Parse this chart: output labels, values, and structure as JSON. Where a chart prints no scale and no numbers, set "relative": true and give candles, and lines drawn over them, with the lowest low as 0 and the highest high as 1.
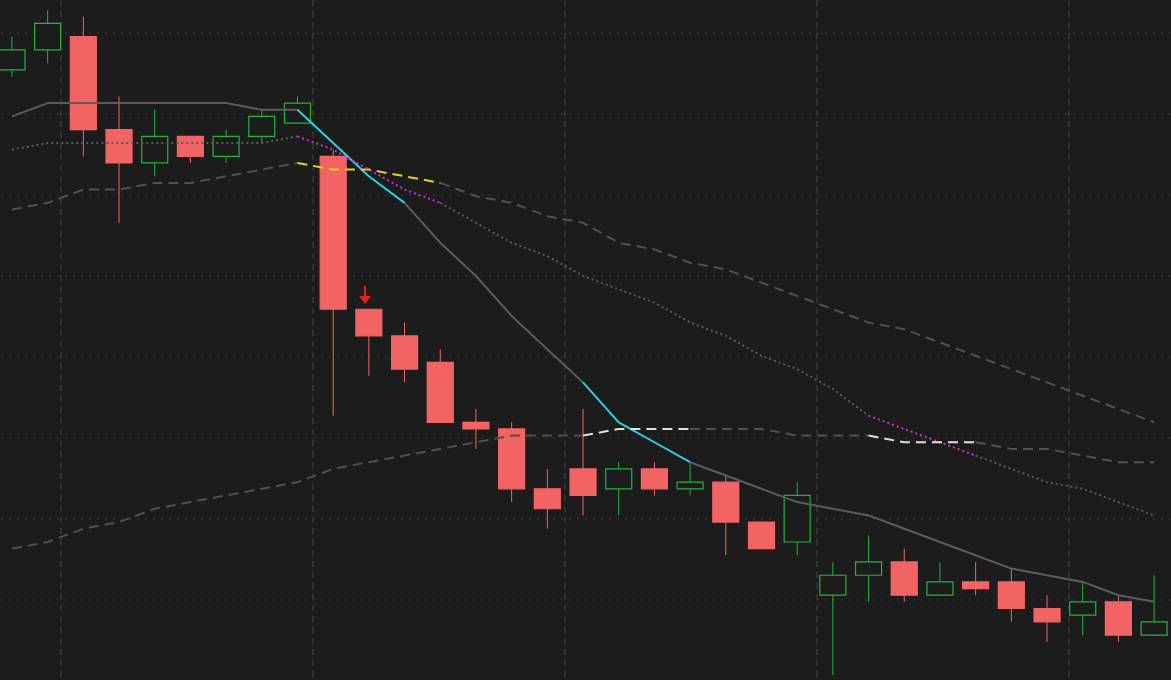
{
  "chart_data": {
    "type": "candlestick",
    "relative": true,
    "categories": [
      null,
      null,
      null,
      null,
      null,
      null,
      null,
      null,
      null,
      null,
      null,
      null,
      null,
      null,
      null,
      null,
      null,
      null,
      null,
      null,
      null,
      null,
      null,
      null,
      null,
      null,
      null,
      null,
      null,
      null,
      null,
      null,
      null
    ],
    "ohlc": [
      [
        0.91,
        0.96,
        0.9,
        0.94
      ],
      [
        0.94,
        1.0,
        0.92,
        0.98
      ],
      [
        0.96,
        0.99,
        0.78,
        0.82
      ],
      [
        0.82,
        0.87,
        0.68,
        0.77
      ],
      [
        0.77,
        0.85,
        0.75,
        0.81
      ],
      [
        0.81,
        0.81,
        0.77,
        0.78
      ],
      [
        0.78,
        0.82,
        0.77,
        0.81
      ],
      [
        0.81,
        0.85,
        0.8,
        0.84
      ],
      [
        0.83,
        0.87,
        0.83,
        0.86
      ],
      [
        0.78,
        0.79,
        0.39,
        0.55
      ],
      [
        0.55,
        0.55,
        0.45,
        0.51
      ],
      [
        0.51,
        0.53,
        0.44,
        0.46
      ],
      [
        0.47,
        0.49,
        0.38,
        0.38
      ],
      [
        0.38,
        0.4,
        0.34,
        0.37
      ],
      [
        0.37,
        0.38,
        0.26,
        0.28
      ],
      [
        0.28,
        0.31,
        0.22,
        0.25
      ],
      [
        0.31,
        0.4,
        0.24,
        0.27
      ],
      [
        0.28,
        0.32,
        0.24,
        0.31
      ],
      [
        0.31,
        0.32,
        0.27,
        0.28
      ],
      [
        0.28,
        0.32,
        0.27,
        0.29
      ],
      [
        0.29,
        0.3,
        0.18,
        0.23
      ],
      [
        0.23,
        0.23,
        0.19,
        0.19
      ],
      [
        0.2,
        0.29,
        0.18,
        0.27
      ],
      [
        0.12,
        0.17,
        0.0,
        0.15
      ],
      [
        0.15,
        0.21,
        0.11,
        0.17
      ],
      [
        0.17,
        0.19,
        0.11,
        0.12
      ],
      [
        0.12,
        0.17,
        0.12,
        0.14
      ],
      [
        0.14,
        0.17,
        0.12,
        0.13
      ],
      [
        0.14,
        0.16,
        0.08,
        0.1
      ],
      [
        0.1,
        0.12,
        0.05,
        0.08
      ],
      [
        0.09,
        0.14,
        0.06,
        0.11
      ],
      [
        0.11,
        0.12,
        0.05,
        0.06
      ],
      [
        0.06,
        0.15,
        0.06,
        0.08
      ]
    ],
    "colors": [
      "#22b33c",
      "#22b33c",
      "#f26464",
      "#f26464",
      "#22b33c",
      "#f26464",
      "#22b33c",
      "#22b33c",
      "#22b33c",
      "#f26464",
      "#f26464",
      "#f26464",
      "#f26464",
      "#f26464",
      "#f26464",
      "#f26464",
      "#f26464",
      "#22b33c",
      "#f26464",
      "#22b33c",
      "#f26464",
      "#f26464",
      "#22b33c",
      "#22b33c",
      "#22b33c",
      "#f26464",
      "#22b33c",
      "#f26464",
      "#f26464",
      "#f26464",
      "#22b33c",
      "#f26464",
      "#22b33c"
    ],
    "series": [
      {
        "type": "line",
        "color": "#5c5c5c",
        "line_style": "solid",
        "values": [
          0.84,
          0.86,
          0.86,
          0.86,
          0.86,
          0.86,
          0.86,
          0.85,
          0.85,
          null,
          null,
          0.71,
          0.65,
          0.6,
          0.54,
          0.49,
          0.44,
          null,
          null,
          0.32,
          0.3,
          0.28,
          0.26,
          0.25,
          0.24,
          0.22,
          0.2,
          0.18,
          0.16,
          0.15,
          0.14,
          0.12,
          0.11
        ]
      },
      {
        "type": "line",
        "color": "#5a5a5a",
        "line_style": "dotted",
        "values": [
          0.79,
          0.8,
          0.8,
          0.8,
          0.8,
          0.8,
          0.8,
          0.8,
          0.81,
          null,
          null,
          null,
          0.71,
          0.68,
          0.65,
          0.63,
          0.6,
          0.58,
          0.56,
          0.53,
          0.51,
          0.48,
          0.46,
          0.43,
          0.39,
          null,
          null,
          0.33,
          0.31,
          0.29,
          0.28,
          0.26,
          0.24
        ]
      },
      {
        "type": "line",
        "color": "#505050",
        "line_style": "dashed",
        "values": [
          0.7,
          0.71,
          0.73,
          0.73,
          0.74,
          0.74,
          0.75,
          0.76,
          0.77,
          null,
          null,
          null,
          0.74,
          0.72,
          0.71,
          0.69,
          0.68,
          0.65,
          0.64,
          0.62,
          0.61,
          0.59,
          0.57,
          0.55,
          0.53,
          0.52,
          0.5,
          0.48,
          0.46,
          0.44,
          0.42,
          0.4,
          0.38
        ]
      },
      {
        "type": "line",
        "color": "#505050",
        "line_style": "dashed",
        "values": [
          0.19,
          0.2,
          0.22,
          0.23,
          0.25,
          0.26,
          0.27,
          0.28,
          0.29,
          0.31,
          0.32,
          0.33,
          0.34,
          0.35,
          0.36,
          0.36,
          0.36,
          null,
          null,
          0.37,
          0.37,
          0.37,
          0.36,
          0.36,
          0.36,
          null,
          null,
          0.35,
          0.34,
          0.34,
          0.33,
          0.32,
          0.32
        ]
      },
      {
        "type": "line",
        "color": "#29d3e0",
        "line_style": "solid",
        "values": [
          null,
          null,
          null,
          null,
          null,
          null,
          null,
          null,
          0.85,
          0.8,
          0.75,
          0.71,
          null,
          null,
          null,
          null,
          0.44,
          0.38,
          0.35,
          0.32,
          null,
          null,
          null,
          null,
          null,
          null,
          null,
          null,
          null,
          null,
          null,
          null,
          null
        ]
      },
      {
        "type": "line",
        "color": "#e6d21c",
        "line_style": "dashed",
        "values": [
          null,
          null,
          null,
          null,
          null,
          null,
          null,
          null,
          0.77,
          0.76,
          0.76,
          0.75,
          0.74,
          null,
          null,
          null,
          null,
          null,
          null,
          null,
          null,
          null,
          null,
          null,
          null,
          null,
          null,
          null,
          null,
          null,
          null,
          null,
          null
        ]
      },
      {
        "type": "line",
        "color": "#d62ad6",
        "line_style": "dotted",
        "values": [
          null,
          null,
          null,
          null,
          null,
          null,
          null,
          null,
          0.81,
          0.79,
          0.76,
          0.73,
          0.71,
          null,
          null,
          null,
          null,
          null,
          null,
          null,
          null,
          null,
          null,
          null,
          0.39,
          0.37,
          0.35,
          0.33,
          null,
          null,
          null,
          null,
          null
        ]
      },
      {
        "type": "line",
        "color": "#e0e0e0",
        "line_style": "dashed",
        "values": [
          null,
          null,
          null,
          null,
          null,
          null,
          null,
          null,
          null,
          null,
          null,
          null,
          null,
          null,
          null,
          null,
          0.36,
          0.37,
          0.37,
          0.37,
          null,
          null,
          null,
          null,
          0.36,
          0.35,
          0.35,
          0.35,
          null,
          null,
          null,
          null,
          null
        ]
      }
    ]
  }
}
